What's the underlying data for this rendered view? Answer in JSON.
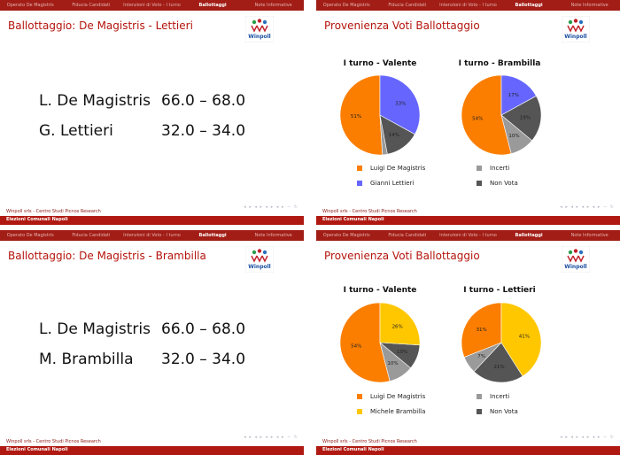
{
  "nav_items": [
    "Operato De Magistris",
    "Fiducia Candidati",
    "Intenzioni di Voto - I turno",
    "Ballottaggi",
    "Note Informative"
  ],
  "nav_active_index": 3,
  "footer": {
    "line1": "Winpoll srls - Centro Studi Picnos Research",
    "line2": "Elezioni Comunali Napoli"
  },
  "colors": {
    "orange": "#fb7e00",
    "blue": "#6666ff",
    "yellow": "#ffc700",
    "gray": "#9a9a9a",
    "darkgray": "#555555",
    "accent": "#b4140c"
  },
  "slides": [
    {
      "title": "Ballottaggio: De Magistris - Lettieri",
      "rows": [
        {
          "name": "L. De Magistris",
          "range": "66.0  –  68.0"
        },
        {
          "name": "G. Lettieri",
          "range": "32.0  –  34.0"
        }
      ]
    },
    {
      "title": "Provenienza Voti Ballottaggio",
      "pies": [
        {
          "title": "I turno - Valente",
          "slices": [
            {
              "value": 51,
              "label": "51%",
              "color": "#fb7e00"
            },
            {
              "value": 2,
              "label": "",
              "color": "#9a9a9a"
            },
            {
              "value": 14,
              "label": "14%",
              "color": "#555555"
            },
            {
              "value": 33,
              "label": "33%",
              "color": "#6666ff"
            }
          ]
        },
        {
          "title": "I turno - Brambilla",
          "slices": [
            {
              "value": 54,
              "label": "54%",
              "color": "#fb7e00"
            },
            {
              "value": 10,
              "label": "10%",
              "color": "#9a9a9a"
            },
            {
              "value": 19,
              "label": "19%",
              "color": "#555555"
            },
            {
              "value": 17,
              "label": "17%",
              "color": "#6666ff"
            }
          ]
        }
      ],
      "legend": [
        {
          "label": "Luigi De Magistris",
          "color": "#fb7e00"
        },
        {
          "label": "Incerti",
          "color": "#9a9a9a"
        },
        {
          "label": "Gianni Lettieri",
          "color": "#6666ff"
        },
        {
          "label": "Non Vota",
          "color": "#555555"
        }
      ]
    },
    {
      "title": "Ballottaggio: De Magistris - Brambilla",
      "rows": [
        {
          "name": "L. De Magistris",
          "range": "66.0  –  68.0"
        },
        {
          "name": "M. Brambilla",
          "range": "32.0  –  34.0"
        }
      ]
    },
    {
      "title": "Provenienza Voti Ballottaggio",
      "pies": [
        {
          "title": "I turno - Valente",
          "slices": [
            {
              "value": 54,
              "label": "54%",
              "color": "#fb7e00"
            },
            {
              "value": 10,
              "label": "10%",
              "color": "#9a9a9a"
            },
            {
              "value": 10,
              "label": "10%",
              "color": "#555555"
            },
            {
              "value": 26,
              "label": "26%",
              "color": "#ffc700"
            }
          ]
        },
        {
          "title": "I turno - Lettieri",
          "slices": [
            {
              "value": 31,
              "label": "31%",
              "color": "#fb7e00"
            },
            {
              "value": 7,
              "label": "7%",
              "color": "#9a9a9a"
            },
            {
              "value": 21,
              "label": "21%",
              "color": "#555555"
            },
            {
              "value": 41,
              "label": "41%",
              "color": "#ffc700"
            }
          ]
        }
      ],
      "legend": [
        {
          "label": "Luigi De Magistris",
          "color": "#fb7e00"
        },
        {
          "label": "Incerti",
          "color": "#9a9a9a"
        },
        {
          "label": "Michele Brambilla",
          "color": "#ffc700"
        },
        {
          "label": "Non Vota",
          "color": "#555555"
        }
      ]
    }
  ]
}
